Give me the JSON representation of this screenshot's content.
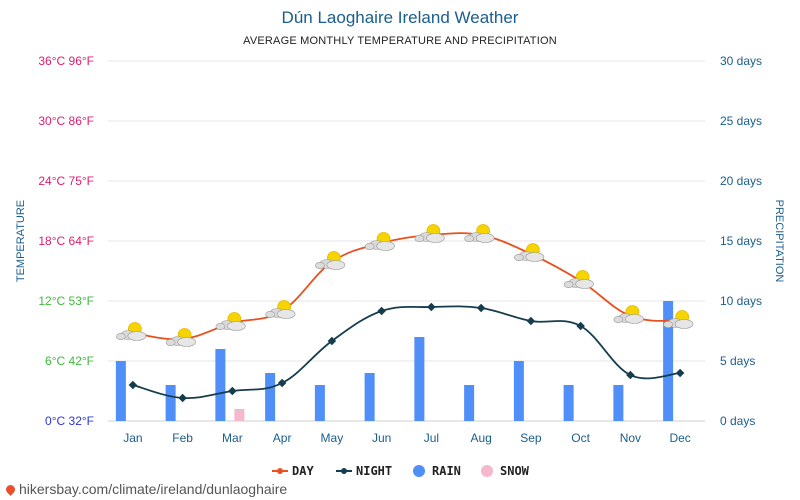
{
  "page": {
    "title": "Dún Laoghaire Ireland Weather",
    "subtitle": "AVERAGE MONTHLY TEMPERATURE AND PRECIPITATION",
    "source": "hikersbay.com/climate/ireland/dunlaoghaire"
  },
  "colors": {
    "day": "#e8501e",
    "night": "#163d4d",
    "rain": "#4f8ff7",
    "snow": "#f6b8cc",
    "temp_hot": "#dd1d6e",
    "temp_mild": "#3dbb3d",
    "temp_cold": "#2b36d8",
    "precip_axis": "#1a5e8c",
    "grid": "#e6e6e6"
  },
  "chart_data": {
    "type": "line",
    "title": "Dún Laoghaire Ireland Weather",
    "subtitle": "AVERAGE MONTHLY TEMPERATURE AND PRECIPITATION",
    "categories": [
      "Jan",
      "Feb",
      "Mar",
      "Apr",
      "May",
      "Jun",
      "Jul",
      "Aug",
      "Sep",
      "Oct",
      "Nov",
      "Dec"
    ],
    "ylabel_left": "TEMPERATURE",
    "ylabel_right": "PRECIPITATION",
    "ylim_left": [
      0,
      36
    ],
    "ylim_right": [
      0,
      30
    ],
    "left_ticks": [
      {
        "value": 0,
        "label": "0°C 32°F",
        "tone": "cold"
      },
      {
        "value": 6,
        "label": "6°C 42°F",
        "tone": "mild"
      },
      {
        "value": 12,
        "label": "12°C 53°F",
        "tone": "mild"
      },
      {
        "value": 18,
        "label": "18°C 64°F",
        "tone": "hot"
      },
      {
        "value": 24,
        "label": "24°C 75°F",
        "tone": "hot"
      },
      {
        "value": 30,
        "label": "30°C 86°F",
        "tone": "hot"
      },
      {
        "value": 36,
        "label": "36°C 96°F",
        "tone": "hot"
      }
    ],
    "right_ticks": [
      {
        "value": 0,
        "label": "0 days"
      },
      {
        "value": 5,
        "label": "5 days"
      },
      {
        "value": 10,
        "label": "10 days"
      },
      {
        "value": 15,
        "label": "15 days"
      },
      {
        "value": 20,
        "label": "20 days"
      },
      {
        "value": 25,
        "label": "25 days"
      },
      {
        "value": 30,
        "label": "30 days"
      }
    ],
    "series": [
      {
        "name": "DAY",
        "type": "line",
        "axis": "left",
        "values": [
          8.8,
          8.2,
          9.8,
          11.0,
          15.9,
          17.8,
          18.6,
          18.6,
          16.7,
          14.0,
          10.5,
          10.0
        ]
      },
      {
        "name": "NIGHT",
        "type": "line",
        "axis": "left",
        "values": [
          3.6,
          2.3,
          3.0,
          3.8,
          8.0,
          11.0,
          11.4,
          11.3,
          10.0,
          9.5,
          4.6,
          4.8
        ]
      },
      {
        "name": "RAIN",
        "type": "bar",
        "axis": "right",
        "values": [
          5,
          3,
          6,
          4,
          3,
          4,
          7,
          3,
          5,
          3,
          3,
          10
        ]
      },
      {
        "name": "SNOW",
        "type": "bar",
        "axis": "right",
        "values": [
          0,
          0,
          1,
          0,
          0,
          0,
          0,
          0,
          0,
          0,
          0,
          0
        ]
      }
    ],
    "legend": [
      "DAY",
      "NIGHT",
      "RAIN",
      "SNOW"
    ],
    "legend_position": "bottom"
  }
}
